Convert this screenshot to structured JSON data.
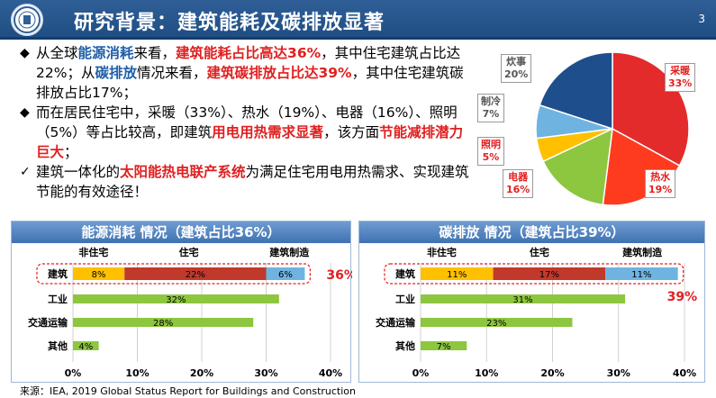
{
  "header": {
    "title": "研究背景：建筑能耗及碳排放显著",
    "page_number": "3"
  },
  "bullets": [
    {
      "mark": "◆",
      "segments": [
        {
          "t": "从全球",
          "c": ""
        },
        {
          "t": "能源消耗",
          "c": "blue"
        },
        {
          "t": "来看，",
          "c": ""
        },
        {
          "t": "建筑能耗占比高达36%",
          "c": "red"
        },
        {
          "t": "，其中住宅建筑占比达22%；从",
          "c": ""
        },
        {
          "t": "碳排放",
          "c": "blue"
        },
        {
          "t": "情况来看，",
          "c": ""
        },
        {
          "t": "建筑碳排放占比达39%",
          "c": "red"
        },
        {
          "t": "，其中住宅建筑碳排放占比17%；",
          "c": ""
        }
      ]
    },
    {
      "mark": "◆",
      "segments": [
        {
          "t": "而在居民住宅中，采暖（33%）、热水（19%）、电器（16%）、照明（5%）等占比较高，即建筑",
          "c": ""
        },
        {
          "t": "用电用热需求显著",
          "c": "red"
        },
        {
          "t": "，该方面",
          "c": ""
        },
        {
          "t": "节能减排潜力巨大",
          "c": "red"
        },
        {
          "t": "；",
          "c": ""
        }
      ]
    },
    {
      "mark": "✓",
      "segments": [
        {
          "t": "建筑一体化的",
          "c": ""
        },
        {
          "t": "太阳能热电联产系统",
          "c": "red"
        },
        {
          "t": "为满足住宅用电用热需求、实现建筑节能的有效途径！",
          "c": ""
        }
      ]
    }
  ],
  "chart_data": [
    {
      "type": "pie",
      "slices": [
        {
          "label": "采暖",
          "value": 33,
          "pct": "33%",
          "color": "#e32b2b"
        },
        {
          "label": "热水",
          "value": 19,
          "pct": "19%",
          "color": "#ff3b1f"
        },
        {
          "label": "电器",
          "value": 16,
          "pct": "16%",
          "color": "#8dc63f"
        },
        {
          "label": "照明",
          "value": 5,
          "pct": "5%",
          "color": "#ffc000"
        },
        {
          "label": "制冷",
          "value": 7,
          "pct": "7%",
          "color": "#6fb4e0"
        },
        {
          "label": "炊事",
          "value": 20,
          "pct": "20%",
          "color": "#1f4e8c"
        }
      ]
    },
    {
      "type": "bar",
      "title": "能源消耗 情况（建筑占比36%）",
      "categories": [
        "建筑",
        "工业",
        "交通运输",
        "其他"
      ],
      "legend": [
        "非住宅",
        "住宅",
        "建筑制造"
      ],
      "xlim": [
        0,
        40
      ],
      "ticks": [
        "0%",
        "10%",
        "20%",
        "30%",
        "40%"
      ],
      "series": [
        {
          "name": "非住宅",
          "values": [
            8,
            null,
            null,
            null
          ],
          "labels": [
            "8%",
            "",
            "",
            ""
          ],
          "color": "#ffc000"
        },
        {
          "name": "住宅",
          "values": [
            22,
            null,
            null,
            null
          ],
          "labels": [
            "22%",
            "",
            "",
            ""
          ],
          "color": "#c0392b"
        },
        {
          "name": "建筑制造",
          "values": [
            6,
            null,
            null,
            null
          ],
          "labels": [
            "6%",
            "",
            "",
            ""
          ],
          "color": "#6fb4e0"
        },
        {
          "name": "",
          "values": [
            null,
            32,
            28,
            4
          ],
          "labels": [
            "",
            "32%",
            "28%",
            "4%"
          ],
          "color": "#8dc63f"
        }
      ],
      "callout": "36%"
    },
    {
      "type": "bar",
      "title": "碳排放 情况（建筑占比39%）",
      "categories": [
        "建筑",
        "工业",
        "交通运输",
        "其他"
      ],
      "legend": [
        "非住宅",
        "住宅",
        "建筑制造"
      ],
      "xlim": [
        0,
        40
      ],
      "ticks": [
        "0%",
        "10%",
        "20%",
        "30%",
        "40%"
      ],
      "series": [
        {
          "name": "非住宅",
          "values": [
            11,
            null,
            null,
            null
          ],
          "labels": [
            "11%",
            "",
            "",
            ""
          ],
          "color": "#ffc000"
        },
        {
          "name": "住宅",
          "values": [
            17,
            null,
            null,
            null
          ],
          "labels": [
            "17%",
            "",
            "",
            ""
          ],
          "color": "#c0392b"
        },
        {
          "name": "建筑制造",
          "values": [
            11,
            null,
            null,
            null
          ],
          "labels": [
            "11%",
            "",
            "",
            ""
          ],
          "color": "#6fb4e0"
        },
        {
          "name": "",
          "values": [
            null,
            31,
            23,
            7
          ],
          "labels": [
            "",
            "31%",
            "23%",
            "7%"
          ],
          "color": "#8dc63f"
        }
      ],
      "callout": "39%"
    }
  ],
  "source": "来源：IEA, 2019 Global Status Report for Buildings and Construction"
}
